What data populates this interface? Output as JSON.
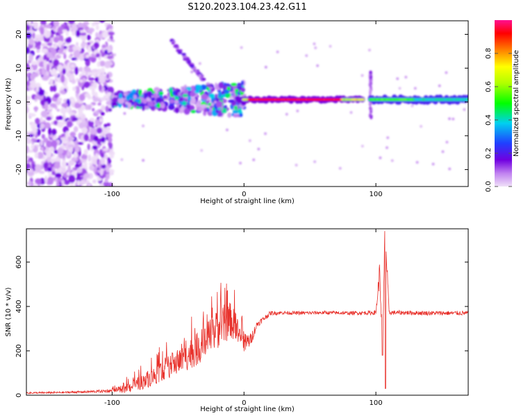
{
  "title": "S120.2023.104.23.42.G11",
  "chart_data": [
    {
      "type": "heatmap",
      "xlabel": "Height of straight line (km)",
      "ylabel": "Frequency (Hz)",
      "xlim": [
        -165,
        170
      ],
      "ylim": [
        -25,
        24
      ],
      "x_ticks": [
        -100,
        0,
        100
      ],
      "y_ticks": [
        -20,
        -10,
        0,
        10,
        20
      ],
      "colorbar": {
        "label": "Normalized spectral amplitude",
        "range": [
          0,
          1
        ],
        "ticks": [
          0.0,
          0.2,
          0.4,
          0.6,
          0.8
        ],
        "colormap": [
          "#f0e0f8",
          "#c080f0",
          "#7000e0",
          "#2040ff",
          "#00d0f0",
          "#00ff00",
          "#b0ff00",
          "#ffff00",
          "#ff8000",
          "#ff0000",
          "#ff1090"
        ]
      },
      "features": {
        "noise_region_x": [
          -165,
          -100
        ],
        "signal_center_hz": 0.7,
        "strong_band_x": [
          0,
          90
        ],
        "disturbance_x": 96,
        "slanted_streak": [
          [
            -55,
            18
          ],
          [
            -25,
            4
          ]
        ]
      }
    },
    {
      "type": "line",
      "xlabel": "Height of straight line (km)",
      "ylabel": "SNR (10 * v/v)",
      "xlim": [
        -165,
        170
      ],
      "ylim": [
        0,
        750
      ],
      "x_ticks": [
        -100,
        0,
        100
      ],
      "y_ticks": [
        0,
        200,
        400,
        600
      ],
      "color": "#e8302a",
      "series": [
        {
          "x": [
            -165,
            -140,
            -120,
            -100,
            -90,
            -80,
            -70,
            -60,
            -50,
            -40,
            -30,
            -20,
            -15,
            -10,
            -5,
            0,
            5,
            10,
            20,
            30,
            40,
            60,
            80,
            100,
            103,
            105,
            107,
            110,
            120,
            140,
            170
          ],
          "values": [
            10,
            12,
            15,
            20,
            30,
            50,
            80,
            120,
            150,
            190,
            230,
            300,
            320,
            340,
            280,
            230,
            250,
            320,
            370,
            372,
            370,
            372,
            370,
            372,
            560,
            200,
            740,
            372,
            372,
            370,
            370
          ],
          "spread": [
            4,
            4,
            5,
            8,
            20,
            30,
            40,
            50,
            60,
            70,
            80,
            90,
            90,
            80,
            70,
            50,
            30,
            15,
            10,
            8,
            8,
            8,
            8,
            10,
            60,
            40,
            80,
            10,
            10,
            10,
            10
          ]
        }
      ]
    }
  ]
}
